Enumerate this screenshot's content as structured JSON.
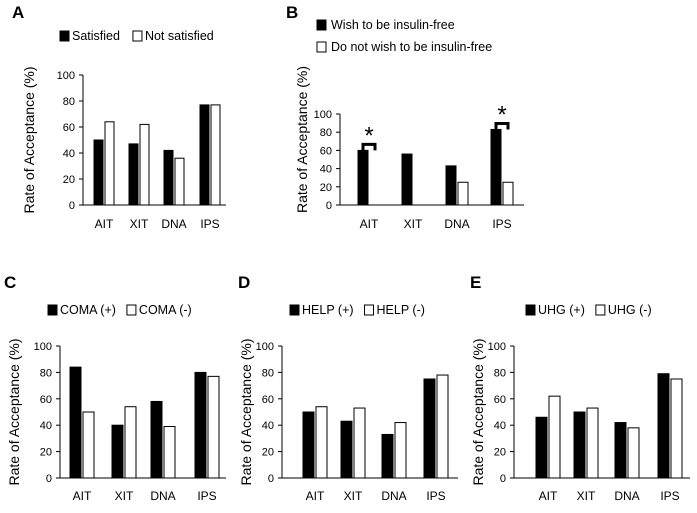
{
  "figure": {
    "chart_data": [
      {
        "type": "bar",
        "panel": "A",
        "categories": [
          "AIT",
          "XIT",
          "DNA",
          "IPS"
        ],
        "series": [
          {
            "name": "Satisfied",
            "values": [
              50,
              47,
              42,
              77
            ],
            "color": "#000000"
          },
          {
            "name": "Not satisfied",
            "values": [
              64,
              62,
              36,
              77
            ],
            "color": "#ffffff"
          }
        ],
        "ylabel": "Rate of Acceptance (%)",
        "ylim": [
          0,
          100
        ],
        "yticks": [
          0,
          20,
          40,
          60,
          80,
          100
        ],
        "legend_placement": "top",
        "annotations": []
      },
      {
        "type": "bar",
        "panel": "B",
        "categories": [
          "AIT",
          "XIT",
          "DNA",
          "IPS"
        ],
        "series": [
          {
            "name": "Wish to be insulin-free",
            "values": [
              60,
              56,
              43,
              83
            ],
            "color": "#000000"
          },
          {
            "name": "Do not wish to be insulin-free",
            "values": [
              0,
              0,
              25,
              25
            ],
            "color": "#ffffff"
          }
        ],
        "ylabel": "Rate of Acceptance (%)",
        "ylim": [
          0,
          100
        ],
        "yticks": [
          0,
          20,
          40,
          60,
          80,
          100
        ],
        "legend_placement": "top-left",
        "annotations": [
          {
            "category": "AIT",
            "text": "*"
          },
          {
            "category": "IPS",
            "text": "*"
          }
        ]
      },
      {
        "type": "bar",
        "panel": "C",
        "categories": [
          "AIT",
          "XIT",
          "DNA",
          "IPS"
        ],
        "series": [
          {
            "name": "COMA (+)",
            "values": [
              84,
              40,
              58,
              80
            ],
            "color": "#000000"
          },
          {
            "name": "COMA (-)",
            "values": [
              50,
              54,
              39,
              77
            ],
            "color": "#ffffff"
          }
        ],
        "ylabel": "Rate of Acceptance (%)",
        "ylim": [
          0,
          100
        ],
        "yticks": [
          0,
          20,
          40,
          60,
          80,
          100
        ],
        "legend_placement": "top",
        "annotations": []
      },
      {
        "type": "bar",
        "panel": "D",
        "categories": [
          "AIT",
          "XIT",
          "DNA",
          "IPS"
        ],
        "series": [
          {
            "name": "HELP (+)",
            "values": [
              50,
              43,
              33,
              75
            ],
            "color": "#000000"
          },
          {
            "name": "HELP (-)",
            "values": [
              54,
              53,
              42,
              78
            ],
            "color": "#ffffff"
          }
        ],
        "ylabel": "Rate of Acceptance (%)",
        "ylim": [
          0,
          100
        ],
        "yticks": [
          0,
          20,
          40,
          60,
          80,
          100
        ],
        "legend_placement": "top",
        "annotations": []
      },
      {
        "type": "bar",
        "panel": "E",
        "categories": [
          "AIT",
          "XIT",
          "DNA",
          "IPS"
        ],
        "series": [
          {
            "name": "UHG (+)",
            "values": [
              46,
              50,
              42,
              79
            ],
            "color": "#000000"
          },
          {
            "name": "UHG (-)",
            "values": [
              62,
              53,
              38,
              75
            ],
            "color": "#ffffff"
          }
        ],
        "ylabel": "Rate of Acceptance (%)",
        "ylim": [
          0,
          100
        ],
        "yticks": [
          0,
          20,
          40,
          60,
          80,
          100
        ],
        "legend_placement": "top",
        "annotations": []
      }
    ]
  }
}
